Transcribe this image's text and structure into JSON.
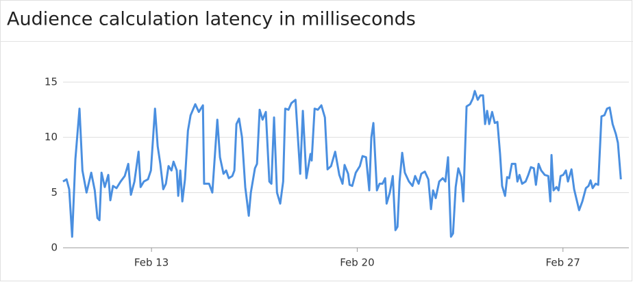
{
  "chart_data": {
    "type": "line",
    "title": "Audience calculation latency in milliseconds",
    "color": "#4a8fe0",
    "x": [
      9.99,
      10.11,
      10.2,
      10.3,
      10.41,
      10.55,
      10.65,
      10.79,
      10.95,
      11.07,
      11.16,
      11.23,
      11.3,
      11.41,
      11.53,
      11.6,
      11.69,
      11.81,
      11.95,
      12.09,
      12.21,
      12.3,
      12.42,
      12.56,
      12.63,
      12.74,
      12.88,
      12.98,
      13.12,
      13.21,
      13.3,
      13.4,
      13.49,
      13.58,
      13.68,
      13.75,
      13.86,
      13.91,
      13.98,
      14.05,
      14.14,
      14.24,
      14.33,
      14.49,
      14.61,
      14.75,
      14.79,
      14.96,
      15.07,
      15.24,
      15.33,
      15.45,
      15.54,
      15.63,
      15.75,
      15.82,
      15.89,
      15.98,
      16.08,
      16.19,
      16.31,
      16.38,
      16.52,
      16.59,
      16.68,
      16.78,
      16.89,
      17.01,
      17.08,
      17.17,
      17.27,
      17.38,
      17.48,
      17.55,
      17.66,
      17.76,
      17.9,
      18.06,
      18.15,
      18.27,
      18.41,
      18.45,
      18.55,
      18.66,
      18.78,
      18.9,
      18.99,
      19.11,
      19.25,
      19.39,
      19.5,
      19.57,
      19.69,
      19.74,
      19.83,
      19.95,
      20.09,
      20.18,
      20.3,
      20.41,
      20.48,
      20.55,
      20.67,
      20.76,
      20.86,
      20.95,
      21.0,
      21.11,
      21.21,
      21.3,
      21.37,
      21.44,
      21.53,
      21.62,
      21.76,
      21.88,
      21.97,
      22.09,
      22.18,
      22.3,
      22.42,
      22.51,
      22.58,
      22.67,
      22.79,
      22.91,
      23.0,
      23.09,
      23.19,
      23.26,
      23.35,
      23.44,
      23.54,
      23.61,
      23.72,
      23.84,
      23.93,
      24.0,
      24.1,
      24.19,
      24.28,
      24.35,
      24.42,
      24.49,
      24.59,
      24.68,
      24.77,
      24.86,
      24.93,
      25.03,
      25.1,
      25.17,
      25.26,
      25.38,
      25.45,
      25.52,
      25.61,
      25.73,
      25.82,
      25.91,
      26.01,
      26.08,
      26.17,
      26.26,
      26.38,
      26.5,
      26.57,
      26.61,
      26.68,
      26.78,
      26.85,
      26.92,
      27.01,
      27.1,
      27.17,
      27.29,
      27.38,
      27.55,
      27.66,
      27.78,
      27.87,
      27.94,
      28.01,
      28.11,
      28.2,
      28.31,
      28.41,
      28.5,
      28.59,
      28.69,
      28.8,
      28.87,
      28.97
    ],
    "values": [
      6.0,
      6.2,
      5.3,
      1.0,
      8,
      12.6,
      7,
      5,
      6.8,
      5.2,
      2.7,
      2.5,
      6.8,
      5.5,
      6.6,
      4.3,
      5.6,
      5.4,
      6,
      6.5,
      7.6,
      4.8,
      6,
      8.7,
      5.5,
      6,
      6.2,
      7,
      12.6,
      9.2,
      7.6,
      5.3,
      5.8,
      7.4,
      7,
      7.8,
      7,
      4.7,
      7,
      4.2,
      6.2,
      10.6,
      12,
      13,
      12.3,
      12.9,
      5.8,
      5.8,
      5,
      11.6,
      8.2,
      6.7,
      7,
      6.3,
      6.5,
      7,
      11.2,
      11.7,
      10,
      5.5,
      2.9,
      5,
      7.2,
      7.6,
      12.5,
      11.6,
      12.3,
      6,
      5.8,
      11.8,
      5,
      4,
      6,
      12.6,
      12.5,
      13.1,
      13.4,
      6.7,
      12.4,
      6.3,
      8.5,
      7.9,
      12.6,
      12.5,
      12.9,
      11.8,
      7.1,
      7.4,
      8.7,
      6.6,
      5.8,
      7.5,
      6.7,
      5.7,
      5.6,
      6.8,
      7.4,
      8.3,
      8.2,
      5.2,
      10,
      11.3,
      5.2,
      5.8,
      5.8,
      6.3,
      4,
      5,
      6.5,
      1.6,
      1.9,
      6,
      8.6,
      6.8,
      6,
      5.6,
      6.5,
      5.8,
      6.7,
      6.9,
      6.2,
      3.5,
      5.2,
      4.5,
      6,
      6.3,
      6,
      8.2,
      1,
      1.3,
      5.5,
      7.2,
      6.4,
      4.2,
      12.8,
      13,
      13.5,
      14.2,
      13.4,
      13.8,
      13.8,
      11.2,
      12.4,
      11.2,
      12.3,
      11.3,
      11.4,
      8.5,
      5.6,
      4.7,
      6.4,
      6.3,
      7.6,
      7.6,
      6,
      6.6,
      5.8,
      6,
      6.6,
      7.3,
      7.2,
      5.7,
      7.6,
      7,
      6.6,
      6.5,
      4.2,
      8.4,
      5.2,
      5.5,
      5.2,
      6.5,
      6.6,
      7,
      6,
      7.1,
      5.3,
      3.4,
      4.2,
      5.4,
      5.6,
      6.1,
      5.4,
      5.8,
      5.7,
      11.9,
      12,
      12.6,
      12.7,
      11.2,
      10.3,
      9.5,
      6.2
    ],
    "xlim": [
      9.99,
      29.01
    ],
    "xticks": [
      {
        "value": 13,
        "label": "Feb 13"
      },
      {
        "value": 20,
        "label": "Feb 20"
      },
      {
        "value": 27,
        "label": "Feb 27"
      }
    ],
    "ylim": [
      0,
      15
    ],
    "yticks": [
      0,
      5,
      10,
      15
    ],
    "grid": true
  }
}
